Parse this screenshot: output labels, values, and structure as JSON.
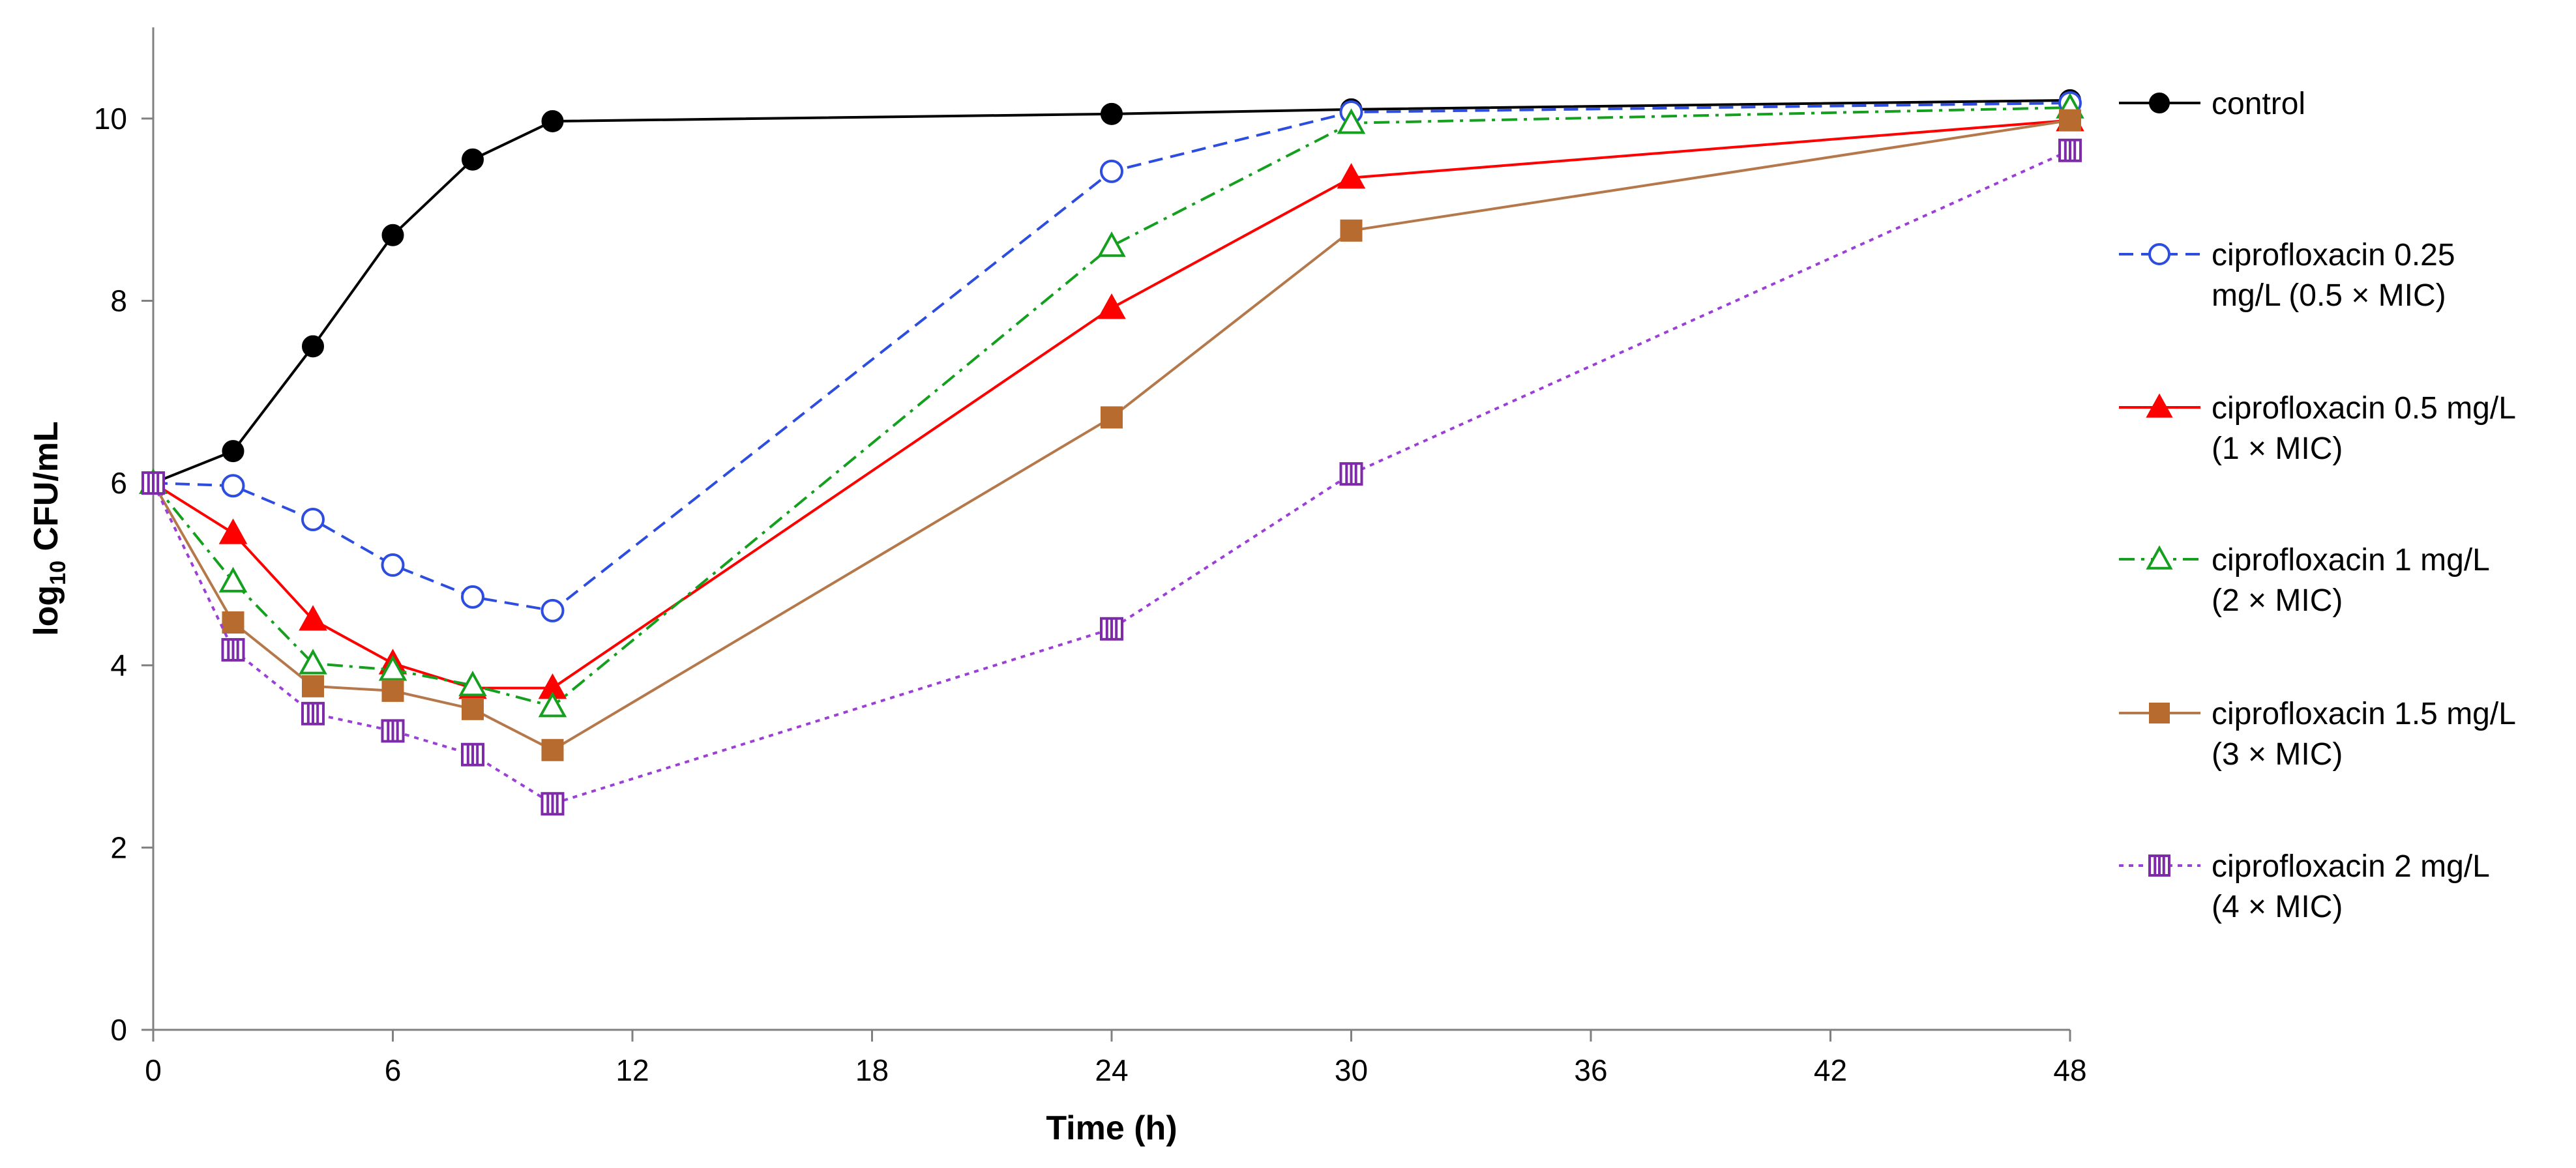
{
  "chart_data": {
    "type": "line",
    "title": "",
    "xlabel": "Time (h)",
    "ylabel": "log10 CFU/mL",
    "ylabel_parts": {
      "base": "log",
      "sub": "10",
      "rest": " CFU/mL"
    },
    "xlim": [
      0,
      48
    ],
    "ylim": [
      0,
      11
    ],
    "xticks": [
      0,
      6,
      12,
      18,
      24,
      30,
      36,
      42,
      48
    ],
    "yticks": [
      0,
      2,
      4,
      6,
      8,
      10
    ],
    "grid": false,
    "legend_position": "right",
    "x": [
      0,
      2,
      4,
      6,
      8,
      10,
      24,
      30,
      48
    ],
    "series": [
      {
        "name": "control",
        "legend_lines": [
          "control"
        ],
        "color": "#000000",
        "dash": "solid",
        "marker": "filled-circle",
        "values": [
          6.0,
          6.35,
          7.5,
          8.72,
          9.55,
          9.97,
          10.05,
          10.1,
          10.2
        ]
      },
      {
        "name": "ciprofloxacin 0.25 mg/L (0.5 × MIC)",
        "legend_lines": [
          "ciprofloxacin 0.25",
          "mg/L  (0.5 × MIC)"
        ],
        "color": "#2d4de0",
        "dash": "dashed",
        "marker": "open-circle",
        "values": [
          6.0,
          5.97,
          5.6,
          5.1,
          4.75,
          4.6,
          9.42,
          10.07,
          10.17
        ]
      },
      {
        "name": "ciprofloxacin 0.5 mg/L (1 × MIC)",
        "legend_lines": [
          "ciprofloxacin 0.5 mg/L",
          "(1 × MIC)"
        ],
        "color": "#ff0000",
        "dash": "solid",
        "marker": "filled-triangle",
        "values": [
          6.0,
          5.45,
          4.5,
          4.02,
          3.75,
          3.75,
          7.92,
          9.35,
          9.98
        ]
      },
      {
        "name": "ciprofloxacin 1 mg/L (2 × MIC)",
        "legend_lines": [
          "ciprofloxacin 1 mg/L",
          "(2 × MIC)"
        ],
        "color": "#14a01e",
        "dash": "dashdot",
        "marker": "open-triangle",
        "values": [
          6.0,
          4.92,
          4.02,
          3.95,
          3.78,
          3.55,
          8.6,
          9.95,
          10.12
        ]
      },
      {
        "name": "ciprofloxacin 1.5 mg/L (3 × MIC)",
        "legend_lines": [
          "ciprofloxacin 1.5 mg/L",
          "(3 × MIC)"
        ],
        "color": "#b5784a",
        "marker_color": "#b86b2e",
        "dash": "solid",
        "marker": "filled-square",
        "values": [
          6.0,
          4.47,
          3.77,
          3.72,
          3.52,
          3.07,
          6.72,
          8.77,
          9.98
        ]
      },
      {
        "name": "ciprofloxacin 2 mg/L (4 × MIC)",
        "legend_lines": [
          "ciprofloxacin 2 mg/L",
          "(4 × MIC)"
        ],
        "color": "#9b3fd6",
        "marker_color": "#7d2ba8",
        "dash": "dotted",
        "marker": "striped-square",
        "values": [
          6.0,
          4.17,
          3.47,
          3.28,
          3.02,
          2.48,
          4.4,
          6.1,
          9.65
        ]
      }
    ]
  }
}
